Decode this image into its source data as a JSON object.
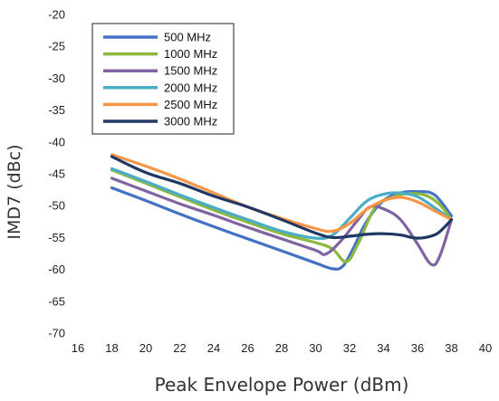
{
  "chart_data": {
    "type": "line",
    "title": "",
    "xlabel": "Peak Envelope Power (dBm)",
    "ylabel": "IMD7 (dBc)",
    "xlim": [
      16,
      40
    ],
    "ylim": [
      -70,
      -20
    ],
    "x_ticks": [
      16,
      18,
      20,
      22,
      24,
      26,
      28,
      30,
      32,
      34,
      36,
      38,
      40
    ],
    "y_ticks": [
      -20,
      -25,
      -30,
      -35,
      -40,
      -45,
      -50,
      -55,
      -60,
      -65,
      -70
    ],
    "grid": false,
    "legend_position": "top-left",
    "series": [
      {
        "name": "500 MHz",
        "color": "#4472C4",
        "points": [
          [
            18,
            -47.2
          ],
          [
            20,
            -49.2
          ],
          [
            22,
            -51.3
          ],
          [
            24,
            -53.3
          ],
          [
            26,
            -55.2
          ],
          [
            28,
            -57.1
          ],
          [
            30,
            -59.0
          ],
          [
            31,
            -59.9
          ],
          [
            31.6,
            -59.5
          ],
          [
            32.2,
            -56.8
          ],
          [
            33,
            -52.5
          ],
          [
            34,
            -49.2
          ],
          [
            35,
            -48.0
          ],
          [
            36,
            -47.8
          ],
          [
            37,
            -48.3
          ],
          [
            38,
            -51.6
          ]
        ]
      },
      {
        "name": "1000 MHz",
        "color": "#8DB840",
        "points": [
          [
            18,
            -44.4
          ],
          [
            20,
            -46.5
          ],
          [
            22,
            -48.6
          ],
          [
            24,
            -50.7
          ],
          [
            26,
            -52.6
          ],
          [
            28,
            -54.4
          ],
          [
            30,
            -55.8
          ],
          [
            31,
            -56.8
          ],
          [
            31.8,
            -58.8
          ],
          [
            32.5,
            -56.0
          ],
          [
            33.5,
            -50.3
          ],
          [
            34.5,
            -48.7
          ],
          [
            35.5,
            -48.1
          ],
          [
            36.5,
            -48.4
          ],
          [
            37.3,
            -49.8
          ],
          [
            38,
            -52.2
          ]
        ]
      },
      {
        "name": "1500 MHz",
        "color": "#8064A2",
        "points": [
          [
            18,
            -45.7
          ],
          [
            20,
            -47.7
          ],
          [
            22,
            -49.7
          ],
          [
            24,
            -51.5
          ],
          [
            26,
            -53.4
          ],
          [
            28,
            -55.2
          ],
          [
            30,
            -57.0
          ],
          [
            30.6,
            -57.6
          ],
          [
            31.5,
            -55.5
          ],
          [
            32.5,
            -52.2
          ],
          [
            33.2,
            -50.2
          ],
          [
            34,
            -50.5
          ],
          [
            35,
            -52.2
          ],
          [
            36,
            -56.0
          ],
          [
            36.8,
            -59.2
          ],
          [
            37.3,
            -58.0
          ],
          [
            38,
            -52.2
          ]
        ]
      },
      {
        "name": "2000 MHz",
        "color": "#4BACC6",
        "points": [
          [
            18,
            -44.2
          ],
          [
            20,
            -46.2
          ],
          [
            22,
            -48.3
          ],
          [
            24,
            -50.3
          ],
          [
            26,
            -52.2
          ],
          [
            28,
            -54.0
          ],
          [
            30,
            -55.1
          ],
          [
            31,
            -54.6
          ],
          [
            32,
            -52.0
          ],
          [
            33,
            -49.3
          ],
          [
            34,
            -48.2
          ],
          [
            35,
            -48.0
          ],
          [
            36,
            -48.6
          ],
          [
            37,
            -50.3
          ],
          [
            38,
            -52.2
          ]
        ]
      },
      {
        "name": "2500 MHz",
        "color": "#F79646",
        "points": [
          [
            18,
            -42.0
          ],
          [
            20,
            -43.8
          ],
          [
            22,
            -45.8
          ],
          [
            24,
            -48.0
          ],
          [
            26,
            -50.2
          ],
          [
            28,
            -52.0
          ],
          [
            30,
            -53.6
          ],
          [
            31,
            -54.0
          ],
          [
            32,
            -52.8
          ],
          [
            33,
            -50.6
          ],
          [
            34,
            -49.2
          ],
          [
            35,
            -48.7
          ],
          [
            36,
            -49.4
          ],
          [
            37,
            -50.8
          ],
          [
            38,
            -52.2
          ]
        ]
      },
      {
        "name": "3000 MHz",
        "color": "#1F3864",
        "points": [
          [
            18,
            -42.3
          ],
          [
            20,
            -44.8
          ],
          [
            22,
            -46.5
          ],
          [
            24,
            -48.5
          ],
          [
            26,
            -50.2
          ],
          [
            28,
            -52.2
          ],
          [
            30,
            -54.3
          ],
          [
            31,
            -55.0
          ],
          [
            32,
            -54.8
          ],
          [
            33,
            -54.5
          ],
          [
            34,
            -54.4
          ],
          [
            35,
            -54.6
          ],
          [
            36,
            -55.1
          ],
          [
            37,
            -54.6
          ],
          [
            37.5,
            -53.6
          ],
          [
            38,
            -52.2
          ]
        ]
      }
    ]
  }
}
